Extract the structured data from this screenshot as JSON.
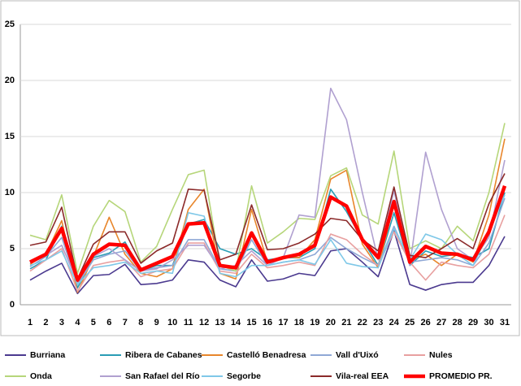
{
  "chart_data": {
    "type": "line",
    "categories": [
      "1",
      "2",
      "3",
      "4",
      "5",
      "6",
      "7",
      "8",
      "9",
      "10",
      "11",
      "12",
      "13",
      "14",
      "15",
      "16",
      "17",
      "18",
      "19",
      "20",
      "21",
      "22",
      "23",
      "24",
      "25",
      "26",
      "27",
      "28",
      "29",
      "30",
      "31"
    ],
    "ylim": [
      0,
      25
    ],
    "yticks": [
      0,
      5,
      10,
      15,
      20,
      25
    ],
    "grid": true,
    "legend": "bottom",
    "series": [
      {
        "name": "Burriana",
        "color": "#4b3a8f",
        "values": [
          2.2,
          3.0,
          3.7,
          1.0,
          2.6,
          2.7,
          3.6,
          1.8,
          1.9,
          2.2,
          4.0,
          3.8,
          2.2,
          1.6,
          4.0,
          2.1,
          2.3,
          2.8,
          2.6,
          4.8,
          5.0,
          3.8,
          2.5,
          6.6,
          1.8,
          1.3,
          1.8,
          2.0,
          2.0,
          3.5,
          6.1
        ]
      },
      {
        "name": "Ribera de Cabanes",
        "color": "#2a9db5",
        "values": [
          3.2,
          4.0,
          7.0,
          1.5,
          4.2,
          4.6,
          5.6,
          3.0,
          3.5,
          3.5,
          7.2,
          7.6,
          5.0,
          4.5,
          5.0,
          4.0,
          4.2,
          4.2,
          5.0,
          10.3,
          8.3,
          5.8,
          3.5,
          8.2,
          3.5,
          4.8,
          4.3,
          4.5,
          4.2,
          5.0,
          10.0
        ]
      },
      {
        "name": "Castelló Benadresa",
        "color": "#e8862b",
        "values": [
          3.6,
          4.5,
          7.5,
          1.1,
          4.3,
          7.8,
          4.5,
          2.8,
          2.5,
          3.2,
          8.5,
          10.3,
          2.8,
          2.3,
          8.5,
          3.8,
          4.3,
          4.2,
          5.8,
          11.2,
          12.0,
          5.4,
          3.3,
          9.0,
          4.0,
          4.5,
          3.5,
          4.5,
          3.8,
          8.0,
          14.8
        ]
      },
      {
        "name": "Vall d'Uixó",
        "color": "#8fa8d6",
        "values": [
          3.4,
          4.3,
          6.0,
          1.8,
          4.0,
          4.5,
          4.8,
          3.0,
          3.3,
          3.5,
          5.8,
          5.8,
          3.2,
          3.0,
          5.8,
          3.5,
          3.8,
          4.0,
          4.5,
          6.0,
          5.0,
          4.2,
          3.5,
          7.0,
          3.8,
          4.0,
          4.2,
          4.0,
          3.5,
          5.5,
          9.5
        ]
      },
      {
        "name": "Nules",
        "color": "#e8a0a0",
        "values": [
          3.0,
          4.0,
          5.0,
          1.2,
          3.5,
          3.8,
          4.0,
          2.5,
          3.0,
          3.2,
          5.5,
          5.5,
          3.0,
          2.8,
          4.5,
          3.3,
          3.5,
          3.8,
          3.5,
          6.3,
          5.8,
          4.5,
          3.5,
          6.5,
          3.8,
          2.2,
          3.8,
          3.5,
          3.3,
          4.5,
          8.0
        ]
      },
      {
        "name": "Onda",
        "color": "#b6d67a",
        "values": [
          6.2,
          5.8,
          9.8,
          2.8,
          7.0,
          9.3,
          8.3,
          3.8,
          5.2,
          8.5,
          11.6,
          12.0,
          3.5,
          3.0,
          10.6,
          5.5,
          6.5,
          7.7,
          7.6,
          11.5,
          12.2,
          8.0,
          7.2,
          13.7,
          5.0,
          5.7,
          5.0,
          7.0,
          5.7,
          10.0,
          16.2
        ]
      },
      {
        "name": "San Rafael  del Río",
        "color": "#b0a0d0",
        "values": [
          3.7,
          4.4,
          5.3,
          2.0,
          4.3,
          5.0,
          4.0,
          3.0,
          3.2,
          4.0,
          5.3,
          5.3,
          3.2,
          3.5,
          4.8,
          3.5,
          4.2,
          8.0,
          7.8,
          19.3,
          16.5,
          10.0,
          4.0,
          10.2,
          3.5,
          13.6,
          8.5,
          5.0,
          4.0,
          6.0,
          12.9
        ]
      },
      {
        "name": "Segorbe",
        "color": "#7fc8e8",
        "values": [
          3.5,
          4.0,
          4.8,
          1.8,
          3.3,
          3.5,
          3.8,
          2.8,
          3.0,
          2.8,
          8.2,
          7.9,
          2.8,
          2.5,
          3.5,
          3.5,
          3.8,
          4.0,
          3.6,
          5.8,
          3.7,
          3.4,
          3.3,
          6.8,
          4.0,
          6.3,
          5.8,
          4.5,
          3.5,
          6.5,
          9.8
        ]
      },
      {
        "name": "Vila-real EEA",
        "color": "#8b2a2a",
        "values": [
          5.3,
          5.6,
          8.7,
          2.3,
          5.4,
          6.5,
          6.5,
          3.7,
          4.8,
          5.5,
          10.3,
          10.2,
          4.0,
          4.5,
          8.9,
          4.9,
          5.0,
          5.5,
          6.3,
          7.7,
          7.5,
          5.8,
          4.8,
          10.5,
          4.4,
          4.2,
          5.0,
          5.9,
          5.0,
          9.0,
          11.7
        ]
      },
      {
        "name": "PROMEDIO PR.",
        "color": "#ff0000",
        "values": [
          3.8,
          4.5,
          6.8,
          2.2,
          4.5,
          5.4,
          5.3,
          3.1,
          3.7,
          4.3,
          7.2,
          7.3,
          3.5,
          3.3,
          6.4,
          3.8,
          4.2,
          4.5,
          5.3,
          9.6,
          8.8,
          5.8,
          4.2,
          9.2,
          3.8,
          5.2,
          4.6,
          4.5,
          4.0,
          6.5,
          10.6
        ]
      }
    ]
  }
}
